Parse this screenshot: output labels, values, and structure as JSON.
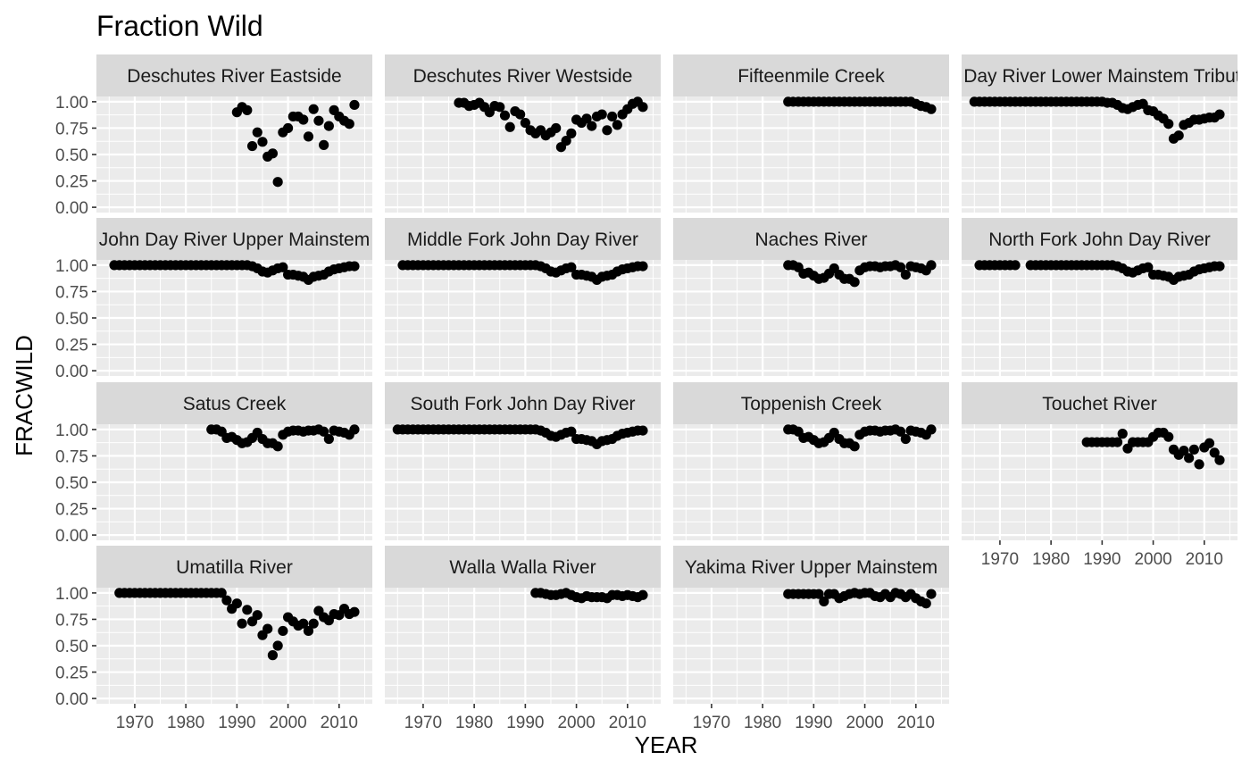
{
  "chart_data": {
    "type": "scatter",
    "title": "Fraction Wild",
    "xlabel": "YEAR",
    "ylabel": "FRACWILD",
    "xlim": [
      1962.5,
      2016.5
    ],
    "ylim": [
      -0.05,
      1.05
    ],
    "x_ticks": [
      1970,
      1980,
      1990,
      2000,
      2010
    ],
    "x_tick_labels": [
      "1970",
      "1980",
      "1990",
      "2000",
      "2010"
    ],
    "y_ticks": [
      0,
      0.25,
      0.5,
      0.75,
      1
    ],
    "y_tick_labels": [
      "0.00",
      "0.25",
      "0.50",
      "0.75",
      "1.00"
    ],
    "grid": true,
    "point_color": "#000000",
    "panel_background": "#ebebeb",
    "strip_background": "#d9d9d9",
    "panels": [
      {
        "name": "Deschutes River Eastside",
        "x": [
          1990,
          1991,
          1992,
          1993,
          1994,
          1995,
          1996,
          1997,
          1998,
          1999,
          2000,
          2001,
          2002,
          2003,
          2004,
          2005,
          2006,
          2007,
          2008,
          2009,
          2010,
          2011,
          2012,
          2013
        ],
        "y": [
          0.9,
          0.95,
          0.92,
          0.58,
          0.71,
          0.62,
          0.48,
          0.51,
          0.24,
          0.71,
          0.75,
          0.86,
          0.86,
          0.83,
          0.67,
          0.93,
          0.82,
          0.59,
          0.77,
          0.92,
          0.86,
          0.82,
          0.79,
          0.97
        ]
      },
      {
        "name": "Deschutes River Westside",
        "x": [
          1977,
          1978,
          1979,
          1980,
          1981,
          1982,
          1983,
          1984,
          1985,
          1986,
          1987,
          1988,
          1989,
          1990,
          1991,
          1992,
          1993,
          1994,
          1995,
          1996,
          1997,
          1998,
          1999,
          2000,
          2001,
          2002,
          2003,
          2004,
          2005,
          2006,
          2007,
          2008,
          2009,
          2010,
          2011,
          2012,
          2013
        ],
        "y": [
          0.99,
          0.99,
          0.96,
          0.97,
          0.99,
          0.95,
          0.9,
          0.96,
          0.95,
          0.87,
          0.76,
          0.91,
          0.88,
          0.8,
          0.73,
          0.7,
          0.73,
          0.68,
          0.71,
          0.75,
          0.57,
          0.63,
          0.7,
          0.83,
          0.8,
          0.84,
          0.77,
          0.86,
          0.88,
          0.73,
          0.86,
          0.78,
          0.88,
          0.93,
          0.98,
          1.0,
          0.95
        ]
      },
      {
        "name": "Fifteenmile Creek",
        "x": [
          1985,
          1986,
          1987,
          1988,
          1989,
          1990,
          1991,
          1992,
          1993,
          1994,
          1995,
          1996,
          1997,
          1998,
          1999,
          2000,
          2001,
          2002,
          2003,
          2004,
          2005,
          2006,
          2007,
          2008,
          2009,
          2010,
          2011,
          2012,
          2013
        ],
        "y": [
          1,
          1,
          1,
          1,
          1,
          1,
          1,
          1,
          1,
          1,
          1,
          1,
          1,
          1,
          1,
          1,
          1,
          1,
          1,
          1,
          1,
          1,
          1,
          1,
          1,
          0.98,
          0.96,
          0.95,
          0.93
        ]
      },
      {
        "name": "John Day River Lower Mainstem Tributaries",
        "x": [
          1965,
          1966,
          1967,
          1968,
          1969,
          1970,
          1971,
          1972,
          1973,
          1974,
          1975,
          1976,
          1977,
          1978,
          1979,
          1980,
          1981,
          1982,
          1983,
          1984,
          1985,
          1986,
          1987,
          1988,
          1989,
          1990,
          1991,
          1992,
          1993,
          1994,
          1995,
          1996,
          1997,
          1998,
          1999,
          2000,
          2001,
          2002,
          2003,
          2004,
          2005,
          2006,
          2007,
          2008,
          2009,
          2010,
          2011,
          2012,
          2013
        ],
        "y": [
          1,
          1,
          1,
          1,
          1,
          1,
          1,
          1,
          1,
          1,
          1,
          1,
          1,
          1,
          1,
          1,
          1,
          1,
          1,
          1,
          1,
          1,
          1,
          1,
          1,
          1,
          0.99,
          0.99,
          0.97,
          0.94,
          0.93,
          0.95,
          0.97,
          0.98,
          0.92,
          0.91,
          0.87,
          0.84,
          0.79,
          0.65,
          0.68,
          0.78,
          0.8,
          0.83,
          0.83,
          0.84,
          0.85,
          0.85,
          0.88
        ]
      },
      {
        "name": "John Day River Upper Mainstem",
        "x": [
          1966,
          1967,
          1968,
          1969,
          1970,
          1971,
          1972,
          1973,
          1974,
          1975,
          1976,
          1977,
          1978,
          1979,
          1980,
          1981,
          1982,
          1983,
          1984,
          1985,
          1986,
          1987,
          1988,
          1989,
          1990,
          1991,
          1992,
          1993,
          1994,
          1995,
          1996,
          1997,
          1998,
          1999,
          2000,
          2001,
          2002,
          2003,
          2004,
          2005,
          2006,
          2007,
          2008,
          2009,
          2010,
          2011,
          2012,
          2013
        ],
        "y": [
          1,
          1,
          1,
          1,
          1,
          1,
          1,
          1,
          1,
          1,
          1,
          1,
          1,
          1,
          1,
          1,
          1,
          1,
          1,
          1,
          1,
          1,
          1,
          1,
          1,
          1,
          1,
          0.99,
          0.97,
          0.94,
          0.93,
          0.95,
          0.97,
          0.98,
          0.91,
          0.91,
          0.9,
          0.89,
          0.86,
          0.89,
          0.9,
          0.91,
          0.94,
          0.96,
          0.97,
          0.98,
          0.99,
          0.99
        ]
      },
      {
        "name": "Middle Fork John Day River",
        "x": [
          1966,
          1967,
          1968,
          1969,
          1970,
          1971,
          1972,
          1973,
          1974,
          1975,
          1976,
          1977,
          1978,
          1979,
          1980,
          1981,
          1982,
          1983,
          1984,
          1985,
          1986,
          1987,
          1988,
          1989,
          1990,
          1991,
          1992,
          1993,
          1994,
          1995,
          1996,
          1997,
          1998,
          1999,
          2000,
          2001,
          2002,
          2003,
          2004,
          2005,
          2006,
          2007,
          2008,
          2009,
          2010,
          2011,
          2012,
          2013
        ],
        "y": [
          1,
          1,
          1,
          1,
          1,
          1,
          1,
          1,
          1,
          1,
          1,
          1,
          1,
          1,
          1,
          1,
          1,
          1,
          1,
          1,
          1,
          1,
          1,
          1,
          1,
          1,
          1,
          0.99,
          0.97,
          0.94,
          0.93,
          0.95,
          0.97,
          0.98,
          0.91,
          0.91,
          0.9,
          0.89,
          0.86,
          0.89,
          0.9,
          0.91,
          0.94,
          0.96,
          0.97,
          0.98,
          0.99,
          0.99
        ]
      },
      {
        "name": "Naches River",
        "x": [
          1985,
          1986,
          1987,
          1988,
          1989,
          1990,
          1991,
          1992,
          1993,
          1994,
          1995,
          1996,
          1997,
          1998,
          1999,
          2000,
          2001,
          2002,
          2003,
          2004,
          2005,
          2006,
          2007,
          2008,
          2009,
          2010,
          2011,
          2012,
          2013
        ],
        "y": [
          1.0,
          1.0,
          0.98,
          0.92,
          0.93,
          0.9,
          0.87,
          0.88,
          0.92,
          0.97,
          0.91,
          0.87,
          0.87,
          0.84,
          0.95,
          0.98,
          0.99,
          0.99,
          0.98,
          0.99,
          0.99,
          1.0,
          0.98,
          0.91,
          0.99,
          0.98,
          0.97,
          0.95,
          1.0
        ]
      },
      {
        "name": "North Fork John Day River",
        "x": [
          1966,
          1967,
          1968,
          1969,
          1970,
          1971,
          1972,
          1973,
          1976,
          1977,
          1978,
          1979,
          1980,
          1981,
          1982,
          1983,
          1984,
          1985,
          1986,
          1987,
          1988,
          1989,
          1990,
          1991,
          1992,
          1993,
          1994,
          1995,
          1996,
          1997,
          1998,
          1999,
          2000,
          2001,
          2002,
          2003,
          2004,
          2005,
          2006,
          2007,
          2008,
          2009,
          2010,
          2011,
          2012,
          2013
        ],
        "y": [
          1,
          1,
          1,
          1,
          1,
          1,
          1,
          1,
          1,
          1,
          1,
          1,
          1,
          1,
          1,
          1,
          1,
          1,
          1,
          1,
          1,
          1,
          1,
          1,
          1,
          0.99,
          0.97,
          0.94,
          0.93,
          0.95,
          0.97,
          0.98,
          0.91,
          0.91,
          0.9,
          0.89,
          0.86,
          0.89,
          0.9,
          0.91,
          0.94,
          0.96,
          0.97,
          0.98,
          0.99,
          0.99
        ]
      },
      {
        "name": "Satus Creek",
        "x": [
          1985,
          1986,
          1987,
          1988,
          1989,
          1990,
          1991,
          1992,
          1993,
          1994,
          1995,
          1996,
          1997,
          1998,
          1999,
          2000,
          2001,
          2002,
          2003,
          2004,
          2005,
          2006,
          2007,
          2008,
          2009,
          2010,
          2011,
          2012,
          2013
        ],
        "y": [
          1.0,
          1.0,
          0.98,
          0.92,
          0.93,
          0.9,
          0.87,
          0.88,
          0.92,
          0.97,
          0.91,
          0.87,
          0.87,
          0.84,
          0.95,
          0.98,
          0.99,
          0.99,
          0.98,
          0.99,
          0.99,
          1.0,
          0.98,
          0.91,
          0.99,
          0.98,
          0.97,
          0.95,
          1.0
        ]
      },
      {
        "name": "South Fork John Day River",
        "x": [
          1965,
          1966,
          1967,
          1968,
          1969,
          1970,
          1971,
          1972,
          1973,
          1974,
          1975,
          1976,
          1977,
          1978,
          1979,
          1980,
          1981,
          1982,
          1983,
          1984,
          1985,
          1986,
          1987,
          1988,
          1989,
          1990,
          1991,
          1992,
          1993,
          1994,
          1995,
          1996,
          1997,
          1998,
          1999,
          2000,
          2001,
          2002,
          2003,
          2004,
          2005,
          2006,
          2007,
          2008,
          2009,
          2010,
          2011,
          2012,
          2013
        ],
        "y": [
          1,
          1,
          1,
          1,
          1,
          1,
          1,
          1,
          1,
          1,
          1,
          1,
          1,
          1,
          1,
          1,
          1,
          1,
          1,
          1,
          1,
          1,
          1,
          1,
          1,
          1,
          1,
          1,
          0.99,
          0.97,
          0.94,
          0.93,
          0.95,
          0.97,
          0.98,
          0.91,
          0.91,
          0.9,
          0.89,
          0.86,
          0.89,
          0.9,
          0.91,
          0.94,
          0.96,
          0.97,
          0.98,
          0.99,
          0.99
        ]
      },
      {
        "name": "Toppenish Creek",
        "x": [
          1985,
          1986,
          1987,
          1988,
          1989,
          1990,
          1991,
          1992,
          1993,
          1994,
          1995,
          1996,
          1997,
          1998,
          1999,
          2000,
          2001,
          2002,
          2003,
          2004,
          2005,
          2006,
          2007,
          2008,
          2009,
          2010,
          2011,
          2012,
          2013
        ],
        "y": [
          1.0,
          1.0,
          0.98,
          0.92,
          0.93,
          0.9,
          0.87,
          0.88,
          0.92,
          0.97,
          0.91,
          0.87,
          0.87,
          0.84,
          0.95,
          0.98,
          0.99,
          0.99,
          0.98,
          0.99,
          0.99,
          1.0,
          0.98,
          0.91,
          0.99,
          0.98,
          0.97,
          0.95,
          1.0
        ]
      },
      {
        "name": "Touchet River",
        "x": [
          1987,
          1988,
          1989,
          1990,
          1991,
          1992,
          1993,
          1994,
          1995,
          1996,
          1997,
          1998,
          1999,
          2000,
          2001,
          2002,
          2003,
          2004,
          2005,
          2006,
          2007,
          2008,
          2009,
          2010,
          2011,
          2012,
          2013
        ],
        "y": [
          0.88,
          0.88,
          0.88,
          0.88,
          0.88,
          0.88,
          0.88,
          0.96,
          0.82,
          0.88,
          0.88,
          0.88,
          0.88,
          0.93,
          0.97,
          0.97,
          0.93,
          0.81,
          0.76,
          0.8,
          0.73,
          0.81,
          0.67,
          0.83,
          0.87,
          0.78,
          0.71
        ]
      },
      {
        "name": "Umatilla River",
        "x": [
          1967,
          1968,
          1969,
          1970,
          1971,
          1972,
          1973,
          1974,
          1975,
          1976,
          1977,
          1978,
          1979,
          1980,
          1981,
          1982,
          1983,
          1984,
          1985,
          1986,
          1987,
          1988,
          1989,
          1990,
          1991,
          1992,
          1993,
          1994,
          1995,
          1996,
          1997,
          1998,
          1999,
          2000,
          2001,
          2002,
          2003,
          2004,
          2005,
          2006,
          2007,
          2008,
          2009,
          2010,
          2011,
          2012,
          2013
        ],
        "y": [
          1,
          1,
          1,
          1,
          1,
          1,
          1,
          1,
          1,
          1,
          1,
          1,
          1,
          1,
          1,
          1,
          1,
          1,
          1,
          1,
          1,
          0.93,
          0.85,
          0.9,
          0.71,
          0.84,
          0.73,
          0.79,
          0.6,
          0.66,
          0.41,
          0.5,
          0.64,
          0.77,
          0.73,
          0.69,
          0.71,
          0.64,
          0.71,
          0.83,
          0.77,
          0.74,
          0.8,
          0.79,
          0.85,
          0.8,
          0.82
        ]
      },
      {
        "name": "Walla Walla River",
        "x": [
          1992,
          1993,
          1994,
          1995,
          1996,
          1997,
          1998,
          1999,
          2000,
          2001,
          2002,
          2003,
          2004,
          2005,
          2006,
          2007,
          2008,
          2009,
          2010,
          2011,
          2012,
          2013
        ],
        "y": [
          1.0,
          1.0,
          0.99,
          0.98,
          0.98,
          0.99,
          1.0,
          0.98,
          0.96,
          0.95,
          0.97,
          0.96,
          0.96,
          0.96,
          0.95,
          0.98,
          0.98,
          0.97,
          0.98,
          0.97,
          0.96,
          0.98
        ]
      },
      {
        "name": "Yakima River Upper Mainstem",
        "x": [
          1985,
          1986,
          1987,
          1988,
          1989,
          1990,
          1991,
          1992,
          1993,
          1994,
          1995,
          1996,
          1997,
          1998,
          1999,
          2000,
          2001,
          2002,
          2003,
          2004,
          2005,
          2006,
          2007,
          2008,
          2009,
          2010,
          2011,
          2012,
          2013
        ],
        "y": [
          0.99,
          0.99,
          0.99,
          0.99,
          0.99,
          0.99,
          0.99,
          0.92,
          0.99,
          0.99,
          0.95,
          0.97,
          0.99,
          1.0,
          0.99,
          1.0,
          1.0,
          0.97,
          0.96,
          0.99,
          0.96,
          1.0,
          0.99,
          0.96,
          0.99,
          0.95,
          0.92,
          0.9,
          0.99
        ]
      }
    ]
  }
}
